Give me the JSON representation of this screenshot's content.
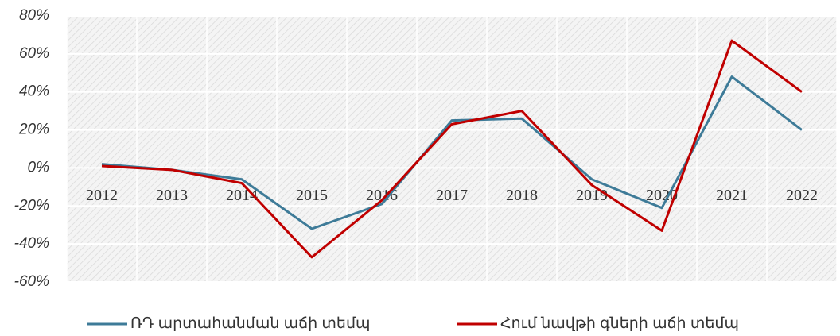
{
  "chart_data": {
    "type": "line",
    "categories": [
      "2012",
      "2013",
      "2014",
      "2015",
      "2016",
      "2017",
      "2018",
      "2019",
      "2020",
      "2021",
      "2022"
    ],
    "series": [
      {
        "name": "ՌԴ արտահանման աճի տեմպ",
        "color": "#3e7b98",
        "values": [
          2,
          -1,
          -6,
          -32,
          -19,
          25,
          26,
          -6,
          -21,
          48,
          20
        ]
      },
      {
        "name": "Հում նավթի գների աճի տեմպ",
        "color": "#c00000",
        "values": [
          1,
          -1,
          -8,
          -47,
          -17,
          23,
          30,
          -9,
          -33,
          67,
          40
        ]
      }
    ],
    "ylim": [
      -60,
      80
    ],
    "yticks": [
      {
        "value": -60,
        "label": "-60%"
      },
      {
        "value": -40,
        "label": "-40%"
      },
      {
        "value": -20,
        "label": "-20%"
      },
      {
        "value": 0,
        "label": "0%"
      },
      {
        "value": 20,
        "label": "20%"
      },
      {
        "value": 40,
        "label": "40%"
      },
      {
        "value": 60,
        "label": "60%"
      },
      {
        "value": 80,
        "label": "80%"
      }
    ],
    "grid": true,
    "legend": "bottom"
  }
}
